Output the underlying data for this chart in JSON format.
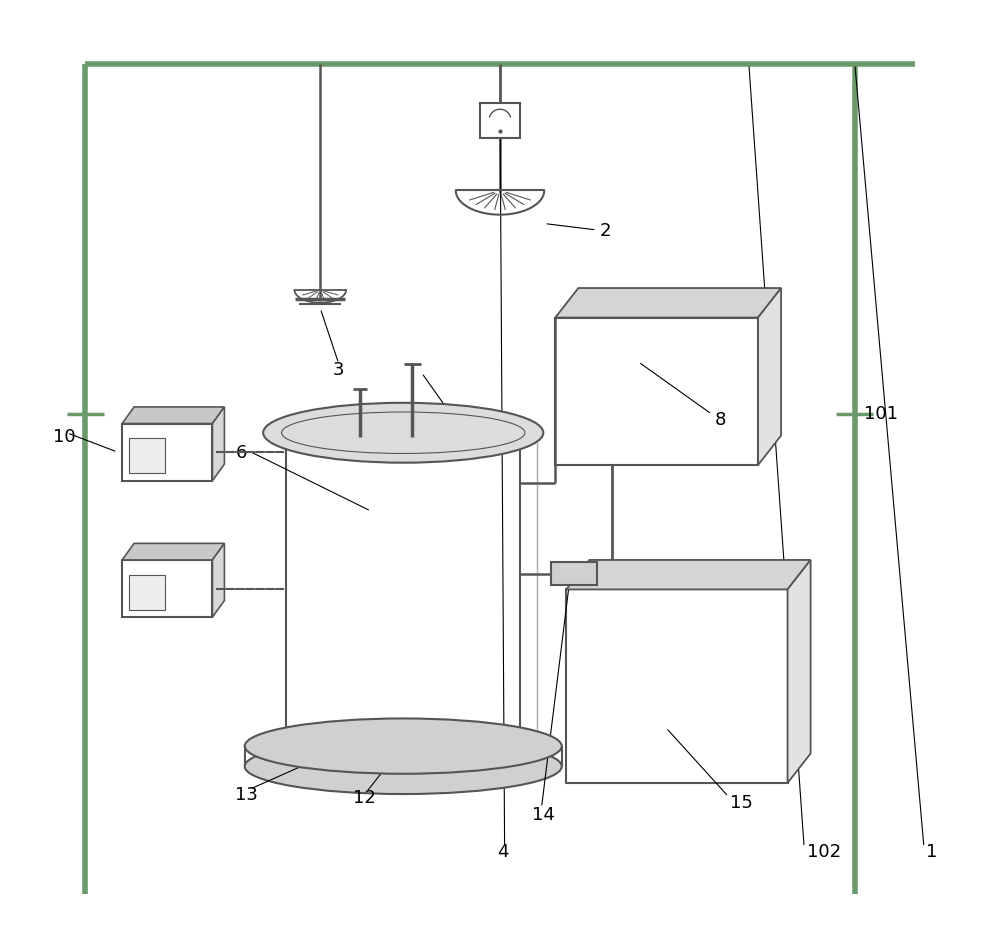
{
  "bg_color": "#ffffff",
  "line_color": "#555555",
  "line_width": 1.5,
  "frame_color": "#6a9a6a"
}
